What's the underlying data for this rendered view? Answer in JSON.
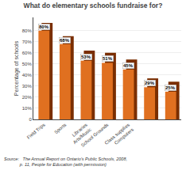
{
  "chart_data": {
    "type": "bar",
    "title": "What do elementary schools fundraise for?",
    "categories": [
      "Field Trips",
      "Sports",
      "Libraries\nArts/Music",
      "School Grounds",
      "Class supplies\nComputers",
      null,
      null
    ],
    "series": [
      {
        "color": "#7a2e00",
        "values": [
          87,
          75,
          62,
          60,
          54,
          37,
          34
        ]
      },
      {
        "color": "#e07020",
        "values": [
          80,
          68,
          53,
          51,
          45,
          29,
          25
        ],
        "value_labels": [
          "80%",
          "68%",
          "53%",
          "51%",
          "45%",
          "29%",
          "25%"
        ]
      }
    ],
    "ylabel": "Percentage of schools",
    "ylim": [
      0,
      92
    ],
    "yticks": [
      0,
      {
        "value": 10,
        "label": "10%"
      },
      {
        "value": 20,
        "label": "20%"
      },
      {
        "value": 30,
        "label": "30%"
      },
      {
        "value": 40,
        "label": "40%"
      },
      {
        "value": 50,
        "label": "50%"
      },
      {
        "value": 60,
        "label": "60%"
      },
      {
        "value": 70,
        "label": "70%"
      },
      {
        "value": 80,
        "label": "80%"
      }
    ],
    "grid": true,
    "data_labels": true,
    "annotations": [
      "Source:   The Annual Report on Ontario’s Public Schools, 2008,\n             p. 11, People for Education (with permission)"
    ]
  }
}
